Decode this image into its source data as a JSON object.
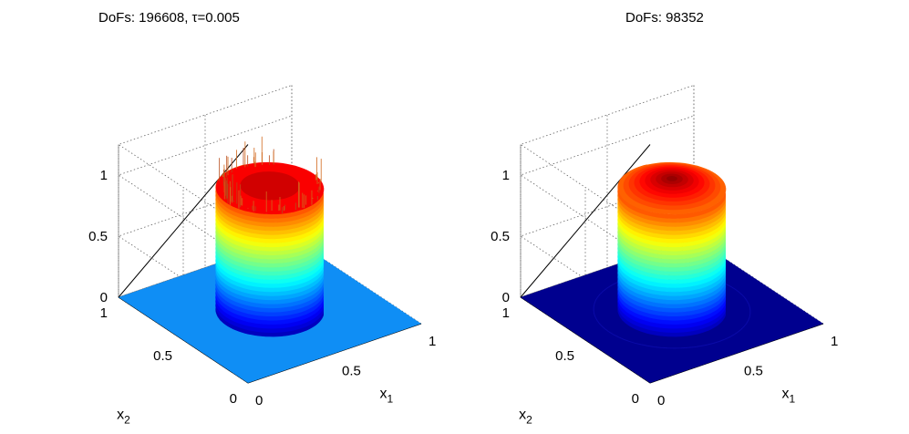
{
  "chart_data": [
    {
      "type": "surface3d",
      "title": "DoFs: 196608, τ=0.005",
      "xlabel": "x",
      "xlabel_sub": "1",
      "ylabel": "x",
      "ylabel_sub": "2",
      "zlabel": "",
      "xlim": [
        0,
        1
      ],
      "ylim": [
        0,
        1
      ],
      "zlim": [
        0,
        1.25
      ],
      "xticks": [
        "0",
        "0.5",
        "1"
      ],
      "yticks": [
        "0",
        "0.5",
        "1"
      ],
      "zticks": [
        "0",
        "0.5",
        "1"
      ],
      "grid": true,
      "colormap": "jet",
      "surface": {
        "shape": "cylinder",
        "center": [
          0.5,
          0.5
        ],
        "radius": 0.25,
        "height": 1.0,
        "base_level": 0,
        "base_color": "#0f8ef5",
        "oscillations": true,
        "spike_max": 1.22
      }
    },
    {
      "type": "surface3d",
      "title": "DoFs: 98352",
      "xlabel": "x",
      "xlabel_sub": "1",
      "ylabel": "x",
      "ylabel_sub": "2",
      "zlabel": "",
      "xlim": [
        0,
        1
      ],
      "ylim": [
        0,
        1
      ],
      "zlim": [
        0,
        1.25
      ],
      "xticks": [
        "0",
        "0.5",
        "1"
      ],
      "yticks": [
        "0",
        "0.5",
        "1"
      ],
      "zticks": [
        "0",
        "0.5",
        "1"
      ],
      "grid": true,
      "colormap": "jet",
      "surface": {
        "shape": "cylinder",
        "center": [
          0.5,
          0.5
        ],
        "radius": 0.25,
        "height": 1.0,
        "base_level": 0,
        "base_color": "#00008f",
        "oscillations": false,
        "cap_max": 1.0
      }
    }
  ]
}
